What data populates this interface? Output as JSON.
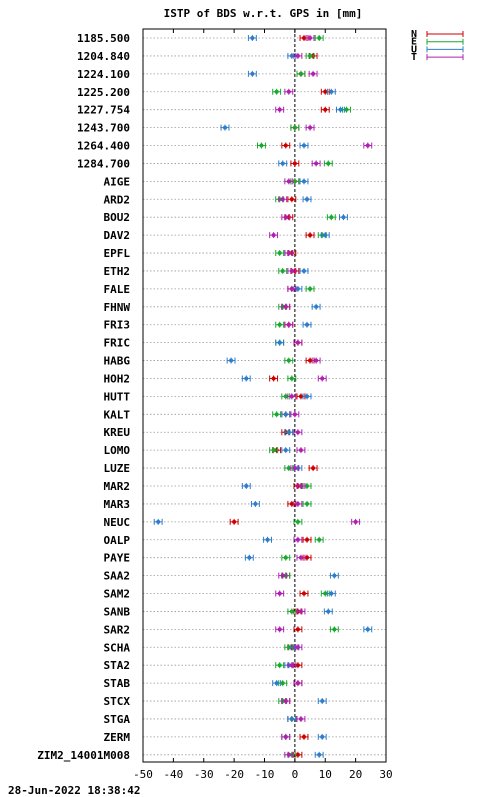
{
  "colors": {
    "N": "#cc0000",
    "E": "#1aa830",
    "U": "#2f7dc8",
    "T": "#b020b0"
  },
  "timestamp": "28-Jun-2022 18:38:42",
  "chart_data": {
    "type": "scatter",
    "title": "ISTP of BDS w.r.t. GPS in [mm]",
    "xlim": [
      -50,
      30
    ],
    "xticks": [
      -50,
      -40,
      -30,
      -20,
      -10,
      0,
      10,
      20,
      30
    ],
    "grid": true,
    "legend_placement": "top-right",
    "legend": [
      "N",
      "E",
      "U",
      "T"
    ],
    "categories": [
      "1185.500",
      "1204.840",
      "1224.100",
      "1225.200",
      "1227.754",
      "1243.700",
      "1264.400",
      "1284.700",
      "AIGE",
      "ARD2",
      "BOU2",
      "DAV2",
      "EPFL",
      "ETH2",
      "FALE",
      "FHNW",
      "FRI3",
      "FRIC",
      "HABG",
      "HOH2",
      "HUTT",
      "KALT",
      "KREU",
      "LOMO",
      "LUZE",
      "MAR2",
      "MAR3",
      "NEUC",
      "OALP",
      "PAYE",
      "SAA2",
      "SAM2",
      "SANB",
      "SAR2",
      "SCHA",
      "STA2",
      "STAB",
      "STCX",
      "STGA",
      "ZERM",
      "ZIM2_14001M008"
    ],
    "series": [
      {
        "name": "N",
        "values": [
          3,
          6,
          2,
          10,
          10,
          0,
          -3,
          0,
          0,
          -1,
          -2,
          5,
          -1,
          0,
          -1,
          -3,
          -2,
          1,
          5,
          -7,
          2,
          -3,
          -3,
          -6,
          6,
          1,
          -1,
          -20,
          4,
          4,
          -3,
          3,
          1,
          1,
          -1,
          1,
          1,
          -3,
          -1,
          3,
          1
        ]
      },
      {
        "name": "E",
        "values": [
          8,
          5,
          2,
          -6,
          17,
          0,
          -11,
          11,
          0,
          -5,
          12,
          9,
          -5,
          -4,
          5,
          -4,
          -5,
          -5,
          -2,
          -1,
          -3,
          -6,
          -2,
          -7,
          -2,
          4,
          4,
          1,
          8,
          -3,
          -3,
          10,
          -1,
          13,
          -2,
          -5,
          -4,
          -4,
          -1,
          -3,
          -1
        ]
      },
      {
        "name": "U",
        "values": [
          -14,
          -1,
          -14,
          12,
          15,
          -23,
          3,
          -4,
          3,
          4,
          16,
          10,
          -2,
          3,
          1,
          7,
          4,
          -5,
          -21,
          -16,
          4,
          -3,
          -2,
          -3,
          1,
          -16,
          -13,
          -45,
          -9,
          -15,
          13,
          12,
          11,
          24,
          0,
          -2,
          -6,
          9,
          -1,
          9,
          8
        ]
      },
      {
        "name": "T",
        "values": [
          5,
          1,
          6,
          -2,
          -5,
          5,
          24,
          7,
          -2,
          -4,
          -3,
          -7,
          -2,
          -1,
          -1,
          -3,
          -2,
          1,
          7,
          9,
          -1,
          0,
          1,
          2,
          0,
          2,
          1,
          20,
          1,
          2,
          -4,
          -5,
          2,
          -5,
          1,
          -1,
          1,
          -3,
          2,
          -3,
          -2
        ]
      }
    ]
  }
}
